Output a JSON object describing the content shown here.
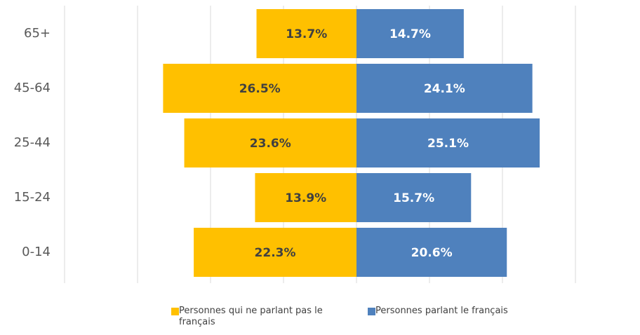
{
  "chart_data": {
    "type": "butterfly",
    "categories": [
      "65+",
      "45-64",
      "25-44",
      "15-24",
      "0-14"
    ],
    "series": [
      {
        "name": "Personnes qui ne parlant pas le français",
        "color": "#FFC000",
        "side": "left",
        "values": [
          13.7,
          26.5,
          23.6,
          13.9,
          22.3
        ],
        "value_labels": [
          "13.7%",
          "26.5%",
          "23.6%",
          "13.9%",
          "22.3%"
        ]
      },
      {
        "name": "Personnes parlant le français",
        "color": "#4F81BD",
        "side": "right",
        "values": [
          14.7,
          24.1,
          25.1,
          15.7,
          20.6
        ],
        "value_labels": [
          "14.7%",
          "24.1%",
          "25.1%",
          "15.7%",
          "20.6%"
        ]
      }
    ],
    "xlim": [
      -40,
      30
    ],
    "xticks": [
      -40,
      -30,
      -20,
      -10,
      0,
      10,
      20,
      30
    ],
    "grid": true
  }
}
